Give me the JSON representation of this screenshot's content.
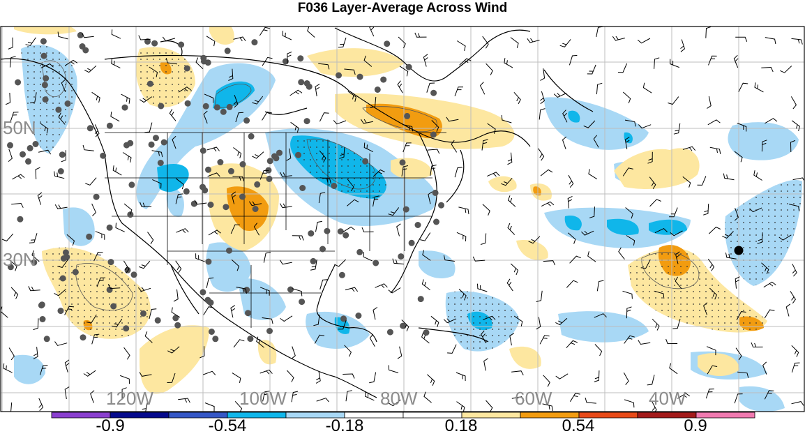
{
  "title": "F036 Layer-Average Across Wind",
  "map": {
    "lat_labels": [
      "50N",
      "30N"
    ],
    "lon_labels": [
      "120W",
      "100W",
      "80W",
      "60W",
      "40W"
    ]
  },
  "colorbar": {
    "colors": [
      "#8a3fcf",
      "#050a8c",
      "#3557c6",
      "#10b6ea",
      "#a8d8f5",
      "#ffffff",
      "#ffffff",
      "#fde7a0",
      "#f29c10",
      "#e84a18",
      "#a31a1a",
      "#f07ab0"
    ],
    "labels": [
      "-0.9",
      "-0.54",
      "-0.18",
      "0.18",
      "0.54",
      "0.9"
    ]
  },
  "legend_colors": {
    "light_blue": "#a8d8f5",
    "blue": "#10b6ea",
    "light_orange": "#fde7a0",
    "orange": "#f29c10"
  }
}
